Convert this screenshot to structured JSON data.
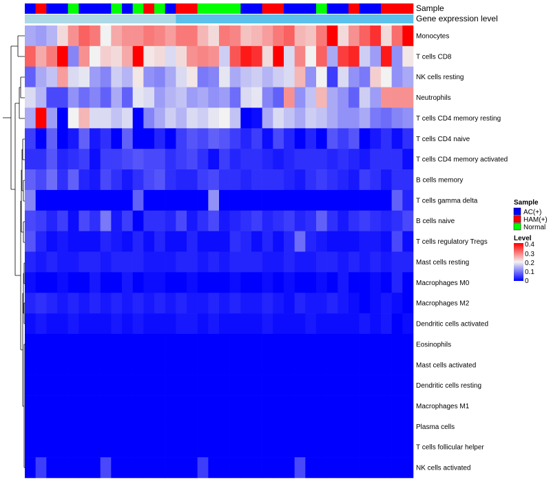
{
  "chart_data": {
    "type": "heatmap",
    "title": "",
    "annotation_labels": {
      "sample": "Sample",
      "gene_expression": "Gene expression level"
    },
    "rows": [
      "Monocytes",
      "T cells CD8",
      "NK cells resting",
      "Neutrophils",
      "T cells CD4 memory resting",
      "T cells CD4 naive",
      "T cells CD4 memory activated",
      "B cells memory",
      "T cells gamma delta",
      "B cells naive",
      "T cells regulatory  Tregs",
      "Mast cells resting",
      "Macrophages M0",
      "Macrophages M2",
      "Dendritic cells activated",
      "Eosinophils",
      "Mast cells activated",
      "Dendritic cells resting",
      "Macrophages M1",
      "Plasma cells",
      "T cells follicular helper",
      "NK cells activated"
    ],
    "sample_groups": [
      0,
      1,
      0,
      0,
      2,
      0,
      0,
      0,
      2,
      0,
      2,
      1,
      2,
      0,
      1,
      1,
      2,
      2,
      2,
      2,
      0,
      0,
      1,
      1,
      0,
      0,
      0,
      2,
      0,
      0,
      1,
      0,
      0,
      1,
      1,
      1
    ],
    "expression_levels": [
      0.2,
      0.2,
      0.2,
      0.2,
      0.2,
      0.2,
      0.2,
      0.2,
      0.2,
      0.2,
      0.2,
      0.2,
      0.2,
      0.2,
      0.3,
      0.3,
      0.3,
      0.3,
      0.3,
      0.3,
      0.3,
      0.3,
      0.3,
      0.3,
      0.3,
      0.3,
      0.3,
      0.3,
      0.3,
      0.3,
      0.3,
      0.3,
      0.3,
      0.3,
      0.3,
      0.3
    ],
    "values": [
      [
        0.14,
        0.13,
        0.15,
        0.22,
        0.28,
        0.32,
        0.3,
        0.2,
        0.26,
        0.28,
        0.28,
        0.3,
        0.29,
        0.27,
        0.3,
        0.3,
        0.25,
        0.22,
        0.3,
        0.29,
        0.24,
        0.25,
        0.27,
        0.3,
        0.32,
        0.25,
        0.24,
        0.3,
        0.4,
        0.22,
        0.28,
        0.32,
        0.36,
        0.22,
        0.31,
        0.4
      ],
      [
        0.32,
        0.26,
        0.3,
        0.4,
        0.11,
        0.28,
        0.2,
        0.23,
        0.22,
        0.26,
        0.4,
        0.21,
        0.22,
        0.18,
        0.22,
        0.28,
        0.29,
        0.28,
        0.17,
        0.33,
        0.38,
        0.36,
        0.22,
        0.4,
        0.18,
        0.29,
        0.2,
        0.32,
        0.14,
        0.35,
        0.37,
        0.17,
        0.13,
        0.38,
        0.12,
        0.21
      ],
      [
        0.08,
        0.14,
        0.16,
        0.27,
        0.18,
        0.19,
        0.13,
        0.11,
        0.17,
        0.15,
        0.21,
        0.12,
        0.11,
        0.14,
        0.18,
        0.21,
        0.1,
        0.11,
        0.19,
        0.14,
        0.16,
        0.17,
        0.15,
        0.17,
        0.18,
        0.25,
        0.12,
        0.2,
        0.05,
        0.18,
        0.12,
        0.1,
        0.23,
        0.2,
        0.12,
        0.14
      ],
      [
        0.18,
        0.15,
        0.06,
        0.06,
        0.12,
        0.09,
        0.11,
        0.08,
        0.14,
        0.08,
        0.19,
        0.18,
        0.13,
        0.15,
        0.16,
        0.13,
        0.14,
        0.12,
        0.13,
        0.09,
        0.18,
        0.19,
        0.11,
        0.08,
        0.28,
        0.12,
        0.16,
        0.25,
        0.14,
        0.12,
        0.08,
        0.17,
        0.13,
        0.28,
        0.28,
        0.28
      ],
      [
        0.14,
        0.4,
        0.13,
        0.0,
        0.2,
        0.25,
        0.18,
        0.18,
        0.16,
        0.18,
        0.0,
        0.11,
        0.14,
        0.17,
        0.15,
        0.18,
        0.17,
        0.19,
        0.2,
        0.16,
        0.0,
        0.01,
        0.14,
        0.18,
        0.16,
        0.14,
        0.17,
        0.16,
        0.14,
        0.12,
        0.12,
        0.14,
        0.1,
        0.09,
        0.11,
        0.12
      ],
      [
        0.05,
        0.0,
        0.08,
        0.0,
        0.02,
        0.08,
        0.02,
        0.04,
        0.0,
        0.08,
        0.0,
        0.0,
        0.03,
        0.0,
        0.05,
        0.07,
        0.06,
        0.08,
        0.07,
        0.05,
        0.03,
        0.05,
        0.01,
        0.06,
        0.03,
        0.0,
        0.03,
        0.0,
        0.07,
        0.05,
        0.07,
        0.0,
        0.02,
        0.04,
        0.01,
        0.04
      ],
      [
        0.04,
        0.04,
        0.07,
        0.03,
        0.04,
        0.05,
        0.01,
        0.05,
        0.05,
        0.06,
        0.07,
        0.06,
        0.06,
        0.04,
        0.05,
        0.06,
        0.04,
        0.01,
        0.05,
        0.03,
        0.04,
        0.04,
        0.03,
        0.02,
        0.03,
        0.04,
        0.04,
        0.04,
        0.03,
        0.04,
        0.03,
        0.02,
        0.04,
        0.04,
        0.04,
        0.01
      ],
      [
        0.08,
        0.06,
        0.09,
        0.04,
        0.08,
        0.03,
        0.02,
        0.06,
        0.04,
        0.02,
        0.04,
        0.06,
        0.07,
        0.04,
        0.03,
        0.03,
        0.05,
        0.06,
        0.04,
        0.04,
        0.03,
        0.04,
        0.04,
        0.04,
        0.03,
        0.02,
        0.04,
        0.05,
        0.04,
        0.03,
        0.02,
        0.05,
        0.04,
        0.02,
        0.04,
        0.04
      ],
      [
        0.11,
        0.0,
        0.0,
        0.0,
        0.0,
        0.0,
        0.0,
        0.0,
        0.0,
        0.0,
        0.08,
        0.0,
        0.0,
        0.0,
        0.0,
        0.0,
        0.0,
        0.12,
        0.0,
        0.0,
        0.0,
        0.0,
        0.0,
        0.0,
        0.0,
        0.0,
        0.0,
        0.0,
        0.0,
        0.0,
        0.0,
        0.0,
        0.0,
        0.0,
        0.08,
        0.03
      ],
      [
        0.06,
        0.05,
        0.03,
        0.05,
        0.01,
        0.06,
        0.04,
        0.1,
        0.02,
        0.05,
        0.0,
        0.04,
        0.04,
        0.03,
        0.06,
        0.02,
        0.04,
        0.06,
        0.02,
        0.03,
        0.04,
        0.05,
        0.03,
        0.04,
        0.05,
        0.03,
        0.04,
        0.08,
        0.04,
        0.02,
        0.04,
        0.05,
        0.04,
        0.03,
        0.04,
        0.06
      ],
      [
        0.07,
        0.03,
        0.01,
        0.02,
        0.01,
        0.01,
        0.01,
        0.03,
        0.02,
        0.01,
        0.03,
        0.01,
        0.03,
        0.01,
        0.01,
        0.03,
        0.01,
        0.01,
        0.01,
        0.04,
        0.03,
        0.01,
        0.03,
        0.01,
        0.03,
        0.09,
        0.03,
        0.02,
        0.01,
        0.01,
        0.01,
        0.02,
        0.02,
        0.01,
        0.06,
        0.01
      ],
      [
        0.03,
        0.02,
        0.03,
        0.02,
        0.02,
        0.03,
        0.03,
        0.02,
        0.03,
        0.03,
        0.03,
        0.02,
        0.02,
        0.02,
        0.03,
        0.03,
        0.02,
        0.03,
        0.02,
        0.03,
        0.03,
        0.03,
        0.02,
        0.02,
        0.03,
        0.02,
        0.02,
        0.03,
        0.03,
        0.02,
        0.03,
        0.02,
        0.03,
        0.02,
        0.03,
        0.03
      ],
      [
        0.01,
        0.0,
        0.0,
        0.01,
        0.0,
        0.0,
        0.02,
        0.0,
        0.0,
        0.02,
        0.0,
        0.01,
        0.01,
        0.0,
        0.0,
        0.01,
        0.0,
        0.0,
        0.0,
        0.01,
        0.0,
        0.0,
        0.01,
        0.0,
        0.01,
        0.0,
        0.0,
        0.01,
        0.0,
        0.02,
        0.0,
        0.0,
        0.01,
        0.0,
        0.03,
        0.0
      ],
      [
        0.03,
        0.04,
        0.03,
        0.02,
        0.03,
        0.02,
        0.03,
        0.02,
        0.03,
        0.02,
        0.03,
        0.02,
        0.03,
        0.02,
        0.03,
        0.02,
        0.02,
        0.03,
        0.02,
        0.03,
        0.02,
        0.02,
        0.03,
        0.02,
        0.01,
        0.03,
        0.02,
        0.02,
        0.03,
        0.02,
        0.01,
        0.0,
        0.01,
        0.02,
        0.01,
        0.0
      ],
      [
        0.01,
        0.02,
        0.01,
        0.01,
        0.02,
        0.01,
        0.01,
        0.01,
        0.02,
        0.01,
        0.02,
        0.01,
        0.01,
        0.01,
        0.02,
        0.02,
        0.01,
        0.02,
        0.01,
        0.01,
        0.01,
        0.01,
        0.02,
        0.01,
        0.01,
        0.01,
        0.02,
        0.01,
        0.01,
        0.01,
        0.01,
        0.02,
        0.01,
        0.02,
        0.0,
        0.01
      ],
      [
        0,
        0,
        0,
        0,
        0,
        0,
        0,
        0,
        0,
        0,
        0,
        0,
        0,
        0,
        0,
        0,
        0,
        0,
        0,
        0,
        0,
        0,
        0,
        0,
        0,
        0,
        0,
        0,
        0,
        0,
        0,
        0,
        0,
        0,
        0,
        0
      ],
      [
        0,
        0,
        0,
        0,
        0,
        0,
        0,
        0,
        0,
        0,
        0,
        0,
        0,
        0,
        0,
        0,
        0,
        0,
        0,
        0,
        0,
        0,
        0,
        0,
        0,
        0,
        0,
        0,
        0,
        0,
        0,
        0,
        0,
        0,
        0,
        0
      ],
      [
        0,
        0,
        0,
        0,
        0,
        0,
        0,
        0,
        0,
        0,
        0,
        0,
        0,
        0,
        0,
        0,
        0,
        0,
        0,
        0,
        0,
        0,
        0,
        0,
        0,
        0,
        0,
        0,
        0,
        0,
        0,
        0,
        0,
        0,
        0,
        0
      ],
      [
        0,
        0,
        0,
        0,
        0,
        0,
        0,
        0,
        0,
        0,
        0,
        0,
        0,
        0,
        0,
        0,
        0,
        0,
        0,
        0,
        0,
        0,
        0,
        0,
        0,
        0,
        0,
        0,
        0,
        0,
        0,
        0,
        0,
        0,
        0,
        0
      ],
      [
        0,
        0,
        0,
        0,
        0,
        0,
        0,
        0,
        0,
        0,
        0,
        0,
        0,
        0,
        0,
        0,
        0,
        0,
        0,
        0,
        0,
        0,
        0,
        0,
        0,
        0,
        0,
        0,
        0,
        0,
        0,
        0,
        0,
        0,
        0,
        0
      ],
      [
        0,
        0,
        0,
        0,
        0,
        0,
        0,
        0,
        0,
        0,
        0,
        0,
        0,
        0,
        0,
        0,
        0,
        0,
        0,
        0,
        0,
        0,
        0,
        0,
        0,
        0,
        0,
        0,
        0,
        0,
        0,
        0,
        0,
        0,
        0,
        0
      ],
      [
        0,
        0.05,
        0,
        0,
        0,
        0,
        0,
        0.06,
        0,
        0,
        0,
        0,
        0,
        0,
        0,
        0,
        0.05,
        0,
        0,
        0,
        0,
        0,
        0,
        0,
        0,
        0.06,
        0,
        0,
        0,
        0,
        0,
        0,
        0,
        0,
        0,
        0
      ]
    ],
    "color_scale": {
      "min": 0,
      "max": 0.4,
      "low": "#0000ff",
      "mid": "#f2f2f2",
      "high": "#ff0000"
    },
    "legend": {
      "sample_title": "Sample",
      "sample_entries": [
        {
          "label": "AC(+)",
          "color": "#0000ff"
        },
        {
          "label": "HAM(+)",
          "color": "#ff0000"
        },
        {
          "label": "Normal",
          "color": "#00ff00"
        }
      ],
      "level_title": "Level",
      "level_ticks": [
        "0.4",
        "0.3",
        "0.2",
        "0.1",
        "0"
      ],
      "position": "right"
    },
    "annotation_colors": {
      "expression_low": "#add8e6",
      "expression_high": "#5bc0eb"
    }
  }
}
